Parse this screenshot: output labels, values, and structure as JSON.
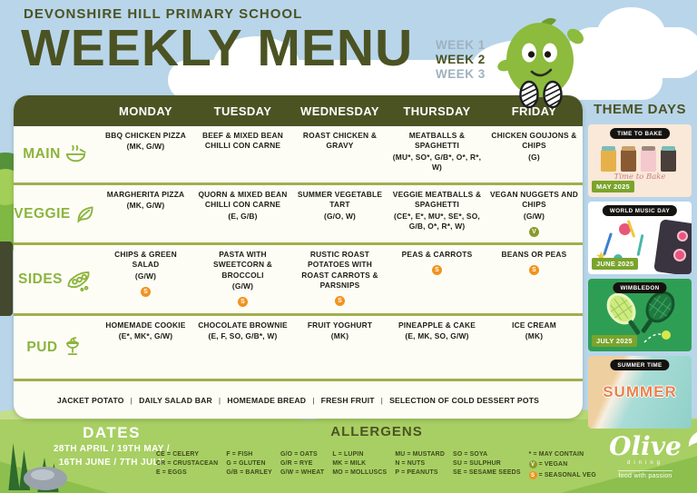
{
  "header": {
    "school_name": "DEVONSHIRE HILL PRIMARY SCHOOL",
    "title": "WEEKLY MENU",
    "weeks": [
      {
        "label": "WEEK 1",
        "active": false
      },
      {
        "label": "WEEK 2",
        "active": true
      },
      {
        "label": "WEEK 3",
        "active": false
      }
    ]
  },
  "menu": {
    "days": [
      "MONDAY",
      "TUESDAY",
      "WEDNESDAY",
      "THURSDAY",
      "FRIDAY"
    ],
    "separator": "|",
    "rows": [
      {
        "label": "MAIN",
        "icon": "bowl-icon",
        "cells": [
          {
            "text": "BBQ CHICKEN PIZZA",
            "info": "(MK, G/W)",
            "badge": ""
          },
          {
            "text": "BEEF & MIXED BEAN CHILLI CON CARNE",
            "info": "",
            "badge": ""
          },
          {
            "text": "ROAST CHICKEN & GRAVY",
            "info": "",
            "badge": ""
          },
          {
            "text": "MEATBALLS & SPAGHETTI",
            "info": "(MU*, SO*, G/B*, O*, R*, W)",
            "badge": ""
          },
          {
            "text": "CHICKEN GOUJONS & CHIPS",
            "info": "(G)",
            "badge": ""
          }
        ]
      },
      {
        "label": "VEGGIE",
        "icon": "leaf-icon",
        "cells": [
          {
            "text": "MARGHERITA PIZZA",
            "info": "(MK, G/W)",
            "badge": ""
          },
          {
            "text": "QUORN & MIXED BEAN CHILLI CON CARNE",
            "info": "(E, G/B)",
            "badge": ""
          },
          {
            "text": "SUMMER VEGETABLE TART",
            "info": "(G/O, W)",
            "badge": ""
          },
          {
            "text": "VEGGIE MEATBALLS & SPAGHETTI",
            "info": "(CE*, E*, MU*, SE*, SO, G/B, O*, R*, W)",
            "badge": ""
          },
          {
            "text": "VEGAN NUGGETS AND CHIPS",
            "info": "(G/W)",
            "badge": "V"
          }
        ]
      },
      {
        "label": "SIDES",
        "icon": "peapod-icon",
        "cells": [
          {
            "text": "CHIPS & GREEN SALAD",
            "info": "(G/W)",
            "badge": "S"
          },
          {
            "text": "PASTA WITH SWEETCORN & BROCCOLI",
            "info": "(G/W)",
            "badge": "S"
          },
          {
            "text": "RUSTIC ROAST POTATOES WITH ROAST CARROTS & PARSNIPS",
            "info": "",
            "badge": "S"
          },
          {
            "text": "PEAS & CARROTS",
            "info": "",
            "badge": "S"
          },
          {
            "text": "BEANS OR PEAS",
            "info": "",
            "badge": "S"
          }
        ]
      },
      {
        "label": "PUD",
        "icon": "sundae-icon",
        "cells": [
          {
            "text": "HOMEMADE COOKIE",
            "info": "(E*, MK*, G/W)",
            "badge": ""
          },
          {
            "text": "CHOCOLATE BROWNIE",
            "info": "(E, F, SO, G/B*, W)",
            "badge": ""
          },
          {
            "text": "FRUIT YOGHURT",
            "info": "(MK)",
            "badge": ""
          },
          {
            "text": "PINEAPPLE & CAKE",
            "info": "(E, MK, SO, G/W)",
            "badge": ""
          },
          {
            "text": "ICE CREAM",
            "info": "(MK)",
            "badge": ""
          }
        ]
      }
    ],
    "daily_items": [
      "JACKET POTATO",
      "DAILY SALAD BAR",
      "HOMEMADE BREAD",
      "FRESH FRUIT",
      "SELECTION OF COLD DESSERT POTS"
    ]
  },
  "theme_days": {
    "title": "THEME DAYS",
    "cards": [
      {
        "badge": "TIME TO BAKE",
        "date": "MAY 2025",
        "caption": "Time to Bake",
        "style": "bake"
      },
      {
        "badge": "WORLD MUSIC DAY",
        "date": "JUNE 2025",
        "caption": "",
        "style": "music"
      },
      {
        "badge": "WIMBLEDON",
        "date": "JULY 2025",
        "caption": "",
        "style": "tennis"
      },
      {
        "badge": "SUMMER TIME",
        "date": "",
        "caption": "SUMMER",
        "style": "summer"
      }
    ]
  },
  "dates": {
    "title": "DATES",
    "line1": "28TH APRIL / 19TH MAY /",
    "line2": "16TH JUNE / 7TH JULY"
  },
  "allergens": {
    "title": "ALLERGENS",
    "columns": [
      [
        {
          "code": "CE",
          "name": "CELERY",
          "badge": ""
        },
        {
          "code": "CR",
          "name": "CRUSTACEAN",
          "badge": ""
        },
        {
          "code": "E",
          "name": "EGGS",
          "badge": ""
        }
      ],
      [
        {
          "code": "F",
          "name": "FISH",
          "badge": ""
        },
        {
          "code": "G",
          "name": "GLUTEN",
          "badge": ""
        },
        {
          "code": "G/B",
          "name": "BARLEY",
          "badge": ""
        }
      ],
      [
        {
          "code": "G/O",
          "name": "OATS",
          "badge": ""
        },
        {
          "code": "G/R",
          "name": "RYE",
          "badge": ""
        },
        {
          "code": "G/W",
          "name": "WHEAT",
          "badge": ""
        }
      ],
      [
        {
          "code": "L",
          "name": "LUPIN",
          "badge": ""
        },
        {
          "code": "MK",
          "name": "MILK",
          "badge": ""
        },
        {
          "code": "MO",
          "name": "MOLLUSCS",
          "badge": ""
        }
      ],
      [
        {
          "code": "MU",
          "name": "MUSTARD",
          "badge": ""
        },
        {
          "code": "N",
          "name": "NUTS",
          "badge": ""
        },
        {
          "code": "P",
          "name": "PEANUTS",
          "badge": ""
        }
      ],
      [
        {
          "code": "SO",
          "name": "SOYA",
          "badge": ""
        },
        {
          "code": "SU",
          "name": "SULPHUR",
          "badge": ""
        },
        {
          "code": "SE",
          "name": "SESAME SEEDS",
          "badge": ""
        }
      ],
      [
        {
          "code": "*",
          "name": "MAY CONTAIN",
          "badge": ""
        },
        {
          "code": "V",
          "name": "VEGAN",
          "badge": "vegan"
        },
        {
          "code": "S",
          "name": "SEASONAL VEG",
          "badge": "seasonal"
        }
      ]
    ]
  },
  "logo": {
    "name": "Olive",
    "sub": "dining",
    "tagline": "food with passion"
  },
  "colors": {
    "sky": "#b9d5ea",
    "dark_olive": "#4b5323",
    "lime_green": "#8cb43c",
    "grass": "#a8cf63",
    "card_bg": "#fdfdf6",
    "seasonal_badge": "#f0931e",
    "vegan_badge": "#8a9a28"
  }
}
